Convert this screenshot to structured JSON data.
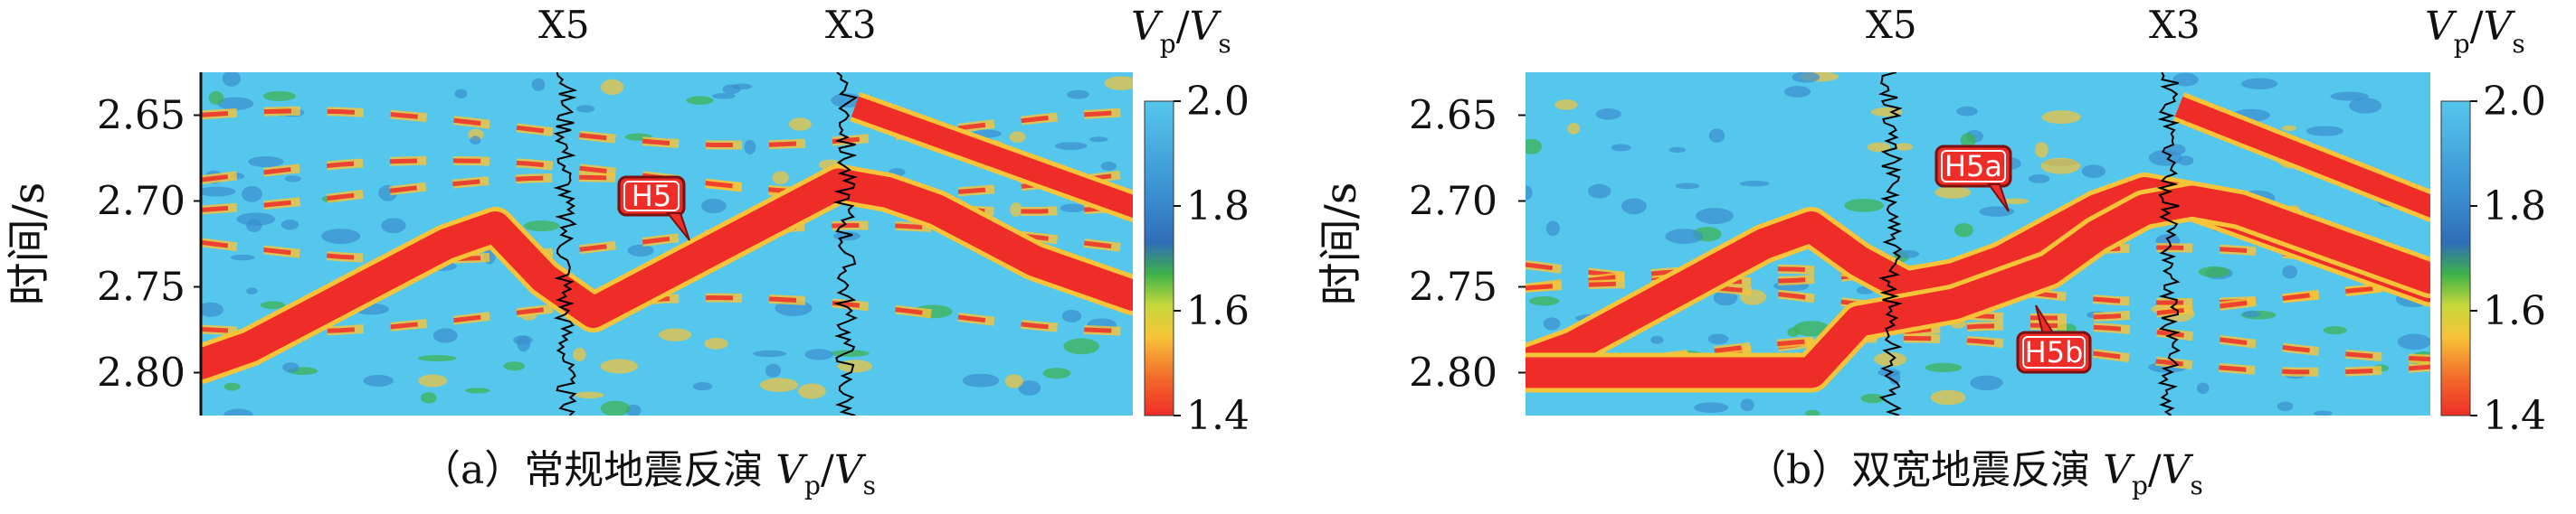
{
  "chart_data": [
    {
      "type": "heatmap",
      "panel_label": "（a）常规地震反演",
      "caption_var_main": "V",
      "caption_var_sub1": "p",
      "caption_var_main2": "V",
      "caption_var_sub2": "s",
      "ylabel": "时间/s",
      "yticks": [
        "2.65",
        "2.70",
        "2.75",
        "2.80"
      ],
      "ytick_values": [
        2.65,
        2.7,
        2.75,
        2.8
      ],
      "ylim": [
        2.625,
        2.825
      ],
      "wells": [
        "X5",
        "X3"
      ],
      "colorbar_title_main": "V",
      "colorbar_title_sub1": "p",
      "colorbar_title_main2": "V",
      "colorbar_title_sub2": "s",
      "colorbar_ticks": [
        "2.0",
        "1.8",
        "1.6",
        "1.4"
      ],
      "colorbar_range": [
        1.4,
        2.0
      ],
      "horizons": [
        {
          "name": "H5",
          "time_profile": [
            2.795,
            2.785,
            2.77,
            2.755,
            2.74,
            2.725,
            2.715,
            2.745,
            2.765,
            2.75,
            2.735,
            2.72,
            2.705,
            2.69,
            2.695,
            2.705,
            2.72,
            2.735,
            2.745,
            2.755
          ]
        }
      ],
      "callouts": [
        "H5"
      ]
    },
    {
      "type": "heatmap",
      "panel_label": "（b）双宽地震反演",
      "caption_var_main": "V",
      "caption_var_sub1": "p",
      "caption_var_main2": "V",
      "caption_var_sub2": "s",
      "ylabel": "时间/s",
      "yticks": [
        "2.65",
        "2.70",
        "2.75",
        "2.80"
      ],
      "ytick_values": [
        2.65,
        2.7,
        2.75,
        2.8
      ],
      "ylim": [
        2.625,
        2.825
      ],
      "wells": [
        "X5",
        "X3"
      ],
      "colorbar_title_main": "V",
      "colorbar_title_sub1": "p",
      "colorbar_title_main2": "V",
      "colorbar_title_sub2": "s",
      "colorbar_ticks": [
        "2.0",
        "1.8",
        "1.6",
        "1.4"
      ],
      "colorbar_range": [
        1.4,
        2.0
      ],
      "horizons": [
        {
          "name": "H5a",
          "time_profile": [
            2.795,
            2.785,
            2.77,
            2.755,
            2.74,
            2.725,
            2.715,
            2.735,
            2.75,
            2.745,
            2.735,
            2.72,
            2.705,
            2.695,
            2.7,
            2.71,
            2.72,
            2.73,
            2.74,
            2.75
          ]
        },
        {
          "name": "H5b",
          "time_profile": [
            2.8,
            2.8,
            2.8,
            2.8,
            2.8,
            2.8,
            2.8,
            2.77,
            2.765,
            2.76,
            2.75,
            2.74,
            2.72,
            2.705,
            2.7,
            2.705,
            2.715,
            2.725,
            2.735,
            2.745
          ]
        }
      ],
      "callouts": [
        "H5a",
        "H5b"
      ]
    }
  ]
}
